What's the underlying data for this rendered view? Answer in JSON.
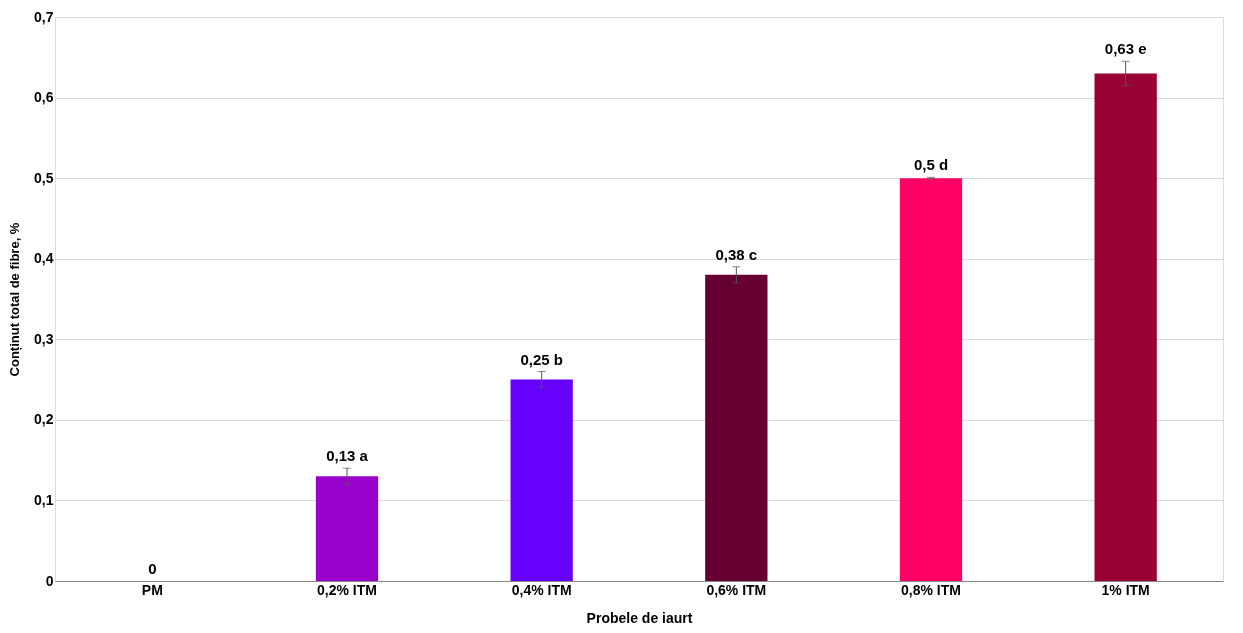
{
  "chart_data": {
    "type": "bar",
    "xlabel": "Probele de iaurt",
    "ylabel": "Conținut total de fibre, %",
    "categories": [
      "PM",
      "0,2% ITM",
      "0,4% ITM",
      "0,6% ITM",
      "0,8% ITM",
      "1% ITM"
    ],
    "values": [
      0,
      0.13,
      0.25,
      0.38,
      0.5,
      0.63
    ],
    "colors": [
      "#9900cc",
      "#9900cc",
      "#6600ff",
      "#660033",
      "#ff0066",
      "#990033"
    ],
    "errors": [
      null,
      0.01,
      0.01,
      0.01,
      0.001,
      0.015
    ],
    "value_labels": [
      "0",
      "0,13 a",
      "0,25 b",
      "0,38 c",
      "0,5 d",
      "0,63 e"
    ],
    "ylim": [
      0,
      0.7
    ],
    "yticks": [
      {
        "value": 0,
        "label": "0"
      },
      {
        "value": 0.1,
        "label": "0,1"
      },
      {
        "value": 0.2,
        "label": "0,2"
      },
      {
        "value": 0.3,
        "label": "0,3"
      },
      {
        "value": 0.4,
        "label": "0,4"
      },
      {
        "value": 0.5,
        "label": "0,5"
      },
      {
        "value": 0.6,
        "label": "0,6"
      },
      {
        "value": 0.7,
        "label": "0,7"
      }
    ],
    "grid": "y",
    "legend": false
  }
}
